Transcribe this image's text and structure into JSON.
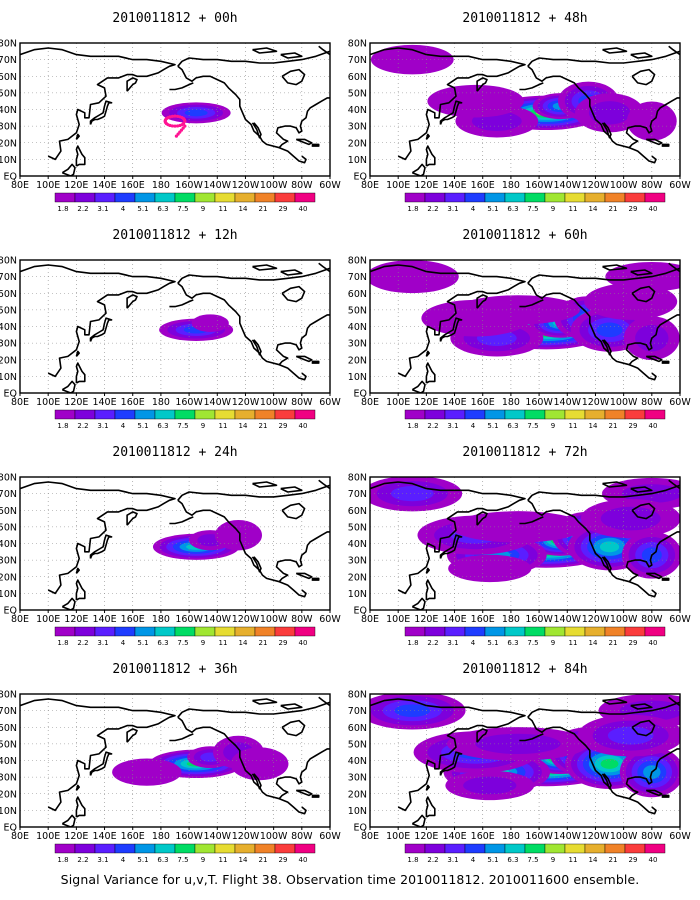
{
  "figure": {
    "caption": "Signal Variance for u,v,T. Flight 38. Observation time 2010011812. 2010011600 ensemble.",
    "lon_labels": [
      "80E",
      "100E",
      "120E",
      "140E",
      "160E",
      "180",
      "160W",
      "140W",
      "120W",
      "100W",
      "80W",
      "60W"
    ],
    "lat_labels": [
      "EQ",
      "10N",
      "20N",
      "30N",
      "40N",
      "50N",
      "60N",
      "70N",
      "80N"
    ],
    "colorbar": {
      "levels": [
        "1.8",
        "2.2",
        "3.1",
        "4",
        "5.1",
        "6.3",
        "7.5",
        "9",
        "11",
        "14",
        "21",
        "29",
        "40"
      ],
      "colors": [
        "#a000c8",
        "#7d00dc",
        "#5a1eff",
        "#1e3cff",
        "#0096e6",
        "#00c8c8",
        "#00dc64",
        "#a0e632",
        "#e6dc32",
        "#e6af2d",
        "#f08228",
        "#fa3c3c",
        "#f00082"
      ]
    }
  },
  "panels": [
    {
      "title": "2010011812 + 00h",
      "col": 0,
      "row": 0,
      "intensity": 0.8,
      "spread": 0.6,
      "flight_track": true
    },
    {
      "title": "2010011812 + 12h",
      "col": 0,
      "row": 1,
      "intensity": 1.0,
      "spread": 0.8,
      "flight_track": false
    },
    {
      "title": "2010011812 + 24h",
      "col": 0,
      "row": 2,
      "intensity": 1.6,
      "spread": 1.3,
      "flight_track": false
    },
    {
      "title": "2010011812 + 36h",
      "col": 0,
      "row": 3,
      "intensity": 2.0,
      "spread": 1.6,
      "flight_track": false
    },
    {
      "title": "2010011812 + 48h",
      "col": 1,
      "row": 0,
      "intensity": 2.6,
      "spread": 2.4,
      "flight_track": false
    },
    {
      "title": "2010011812 + 60h",
      "col": 1,
      "row": 1,
      "intensity": 3.0,
      "spread": 3.0,
      "flight_track": false
    },
    {
      "title": "2010011812 + 72h",
      "col": 1,
      "row": 2,
      "intensity": 3.6,
      "spread": 3.4,
      "flight_track": false
    },
    {
      "title": "2010011812 + 84h",
      "col": 1,
      "row": 3,
      "intensity": 4.0,
      "spread": 3.8,
      "flight_track": false
    }
  ]
}
